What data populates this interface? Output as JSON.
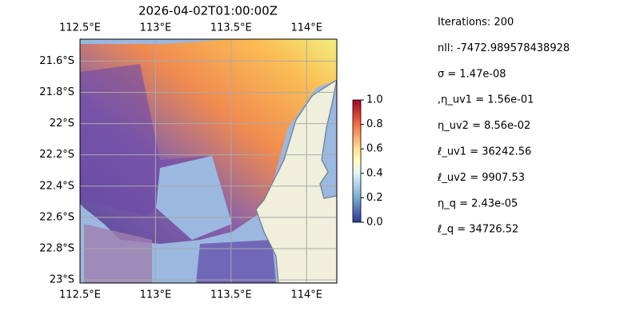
{
  "title": "2026-04-02T01:00:00Z",
  "map": {
    "xlim": [
      112.5,
      114.2
    ],
    "ylim": [
      -23.02,
      -21.46
    ],
    "xticks": [
      {
        "value": 112.5,
        "label": "112.5°E"
      },
      {
        "value": 113,
        "label": "113°E"
      },
      {
        "value": 113.5,
        "label": "113.5°E"
      },
      {
        "value": 114,
        "label": "114°E"
      }
    ],
    "yticks": [
      {
        "value": -21.6,
        "label": "21.6°S"
      },
      {
        "value": -21.8,
        "label": "21.8°S"
      },
      {
        "value": -22,
        "label": "22°S"
      },
      {
        "value": -22.2,
        "label": "22.2°S"
      },
      {
        "value": -22.4,
        "label": "22.4°S"
      },
      {
        "value": -22.6,
        "label": "22.6°S"
      },
      {
        "value": -22.8,
        "label": "22.8°S"
      },
      {
        "value": -23,
        "label": "23°S"
      }
    ]
  },
  "colorbar": {
    "lim": [
      0,
      1
    ],
    "ticks": [
      {
        "value": 0,
        "label": "0.0"
      },
      {
        "value": 0.2,
        "label": "0.2"
      },
      {
        "value": 0.4,
        "label": "0.4"
      },
      {
        "value": 0.6,
        "label": "0.6"
      },
      {
        "value": 0.8,
        "label": "0.8"
      },
      {
        "value": 1,
        "label": "1.0"
      }
    ]
  },
  "info_lines": [
    "Iterations: 200",
    "nll: -7472.989578438928",
    "σ = 1.47e-08",
    ",η_uv1 = 1.56e-01",
    "η_uv2 = 8.56e-02",
    "ℓ_uv1 = 36242.56",
    "ℓ_uv2 = 9907.53",
    "η_q = 2.43e-05",
    "ℓ_q = 34726.52"
  ]
}
